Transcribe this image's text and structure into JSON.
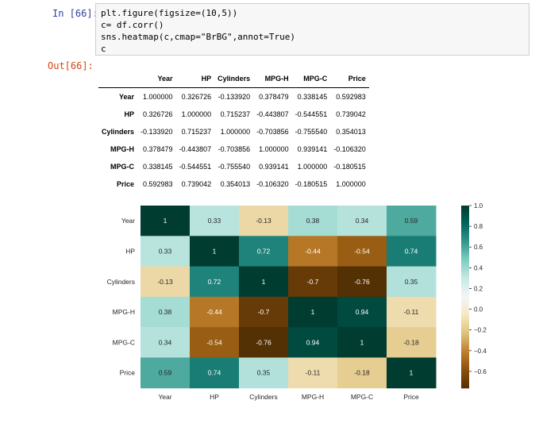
{
  "cells": {
    "input_prompt": "In [66]:",
    "output_prompt": "Out[66]:",
    "code_lines": [
      "plt.figure(figsize=(10,5))",
      "c= df.corr()",
      "sns.heatmap(c,cmap=\"BrBG\",annot=True)",
      "c"
    ]
  },
  "dataframe": {
    "columns": [
      "Year",
      "HP",
      "Cylinders",
      "MPG-H",
      "MPG-C",
      "Price"
    ],
    "rows": [
      {
        "label": "Year",
        "values": [
          "1.000000",
          "0.326726",
          "-0.133920",
          "0.378479",
          "0.338145",
          "0.592983"
        ]
      },
      {
        "label": "HP",
        "values": [
          "0.326726",
          "1.000000",
          "0.715237",
          "-0.443807",
          "-0.544551",
          "0.739042"
        ]
      },
      {
        "label": "Cylinders",
        "values": [
          "-0.133920",
          "0.715237",
          "1.000000",
          "-0.703856",
          "-0.755540",
          "0.354013"
        ]
      },
      {
        "label": "MPG-H",
        "values": [
          "0.378479",
          "-0.443807",
          "-0.703856",
          "1.000000",
          "0.939141",
          "-0.106320"
        ]
      },
      {
        "label": "MPG-C",
        "values": [
          "0.338145",
          "-0.544551",
          "-0.755540",
          "0.939141",
          "1.000000",
          "-0.180515"
        ]
      },
      {
        "label": "Price",
        "values": [
          "0.592983",
          "0.739042",
          "0.354013",
          "-0.106320",
          "-0.180515",
          "1.000000"
        ]
      }
    ]
  },
  "chart_data": {
    "type": "heatmap",
    "title": "",
    "xlabel": "",
    "ylabel": "",
    "colormap": "BrBG",
    "x_categories": [
      "Year",
      "HP",
      "Cylinders",
      "MPG-H",
      "MPG-C",
      "Price"
    ],
    "y_categories": [
      "Year",
      "HP",
      "Cylinders",
      "MPG-H",
      "MPG-C",
      "Price"
    ],
    "values": [
      [
        1,
        0.33,
        -0.13,
        0.38,
        0.34,
        0.59
      ],
      [
        0.33,
        1,
        0.72,
        -0.44,
        -0.54,
        0.74
      ],
      [
        -0.13,
        0.72,
        1,
        -0.7,
        -0.76,
        0.35
      ],
      [
        0.38,
        -0.44,
        -0.7,
        1,
        0.94,
        -0.11
      ],
      [
        0.34,
        -0.54,
        -0.76,
        0.94,
        1,
        -0.18
      ],
      [
        0.59,
        0.74,
        0.35,
        -0.11,
        -0.18,
        1
      ]
    ],
    "annotations": [
      [
        "1",
        "0.33",
        "-0.13",
        "0.38",
        "0.34",
        "0.59"
      ],
      [
        "0.33",
        "1",
        "0.72",
        "-0.44",
        "-0.54",
        "0.74"
      ],
      [
        "-0.13",
        "0.72",
        "1",
        "-0.7",
        "-0.76",
        "0.35"
      ],
      [
        "0.38",
        "-0.44",
        "-0.7",
        "1",
        "0.94",
        "-0.11"
      ],
      [
        "0.34",
        "-0.54",
        "-0.76",
        "0.94",
        "1",
        "-0.18"
      ],
      [
        "0.59",
        "0.74",
        "0.35",
        "-0.11",
        "-0.18",
        "1"
      ]
    ],
    "vmin": -0.76,
    "vmax": 1.0,
    "colorbar_ticks": [
      1.0,
      0.8,
      0.6,
      0.4,
      0.2,
      0.0,
      -0.2,
      -0.4,
      -0.6
    ],
    "colorbar_tick_labels": [
      "1.0",
      "0.8",
      "0.6",
      "0.4",
      "0.2",
      "0.0",
      "−0.2",
      "−0.4",
      "−0.6"
    ]
  }
}
